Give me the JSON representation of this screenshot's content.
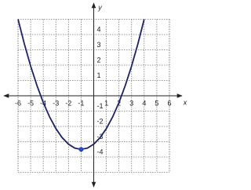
{
  "chart_data": {
    "type": "line",
    "x_label": "x",
    "y_label": "y",
    "x": [
      -6,
      -5.5,
      -5,
      -4.5,
      -4,
      -3.5,
      -3,
      -2.5,
      -2,
      -1.5,
      -1,
      -0.5,
      0,
      0.5,
      1,
      1.5,
      2,
      2.5,
      3,
      3.5,
      4
    ],
    "series": [
      {
        "color": "#1c2266",
        "values": [
          5.0,
          3.39,
          1.94,
          0.67,
          -0.44,
          -1.38,
          -2.14,
          -2.74,
          -3.16,
          -3.42,
          -3.5,
          -3.42,
          -3.16,
          -2.74,
          -2.14,
          -1.38,
          -0.44,
          0.67,
          1.94,
          3.39,
          5.0
        ]
      }
    ],
    "markers": {
      "x": [
        -1
      ],
      "y": [
        -3.5
      ],
      "color": "#2a49c8"
    },
    "xlim": [
      -6,
      6
    ],
    "ylim": [
      -5,
      5
    ],
    "xticks": [
      -6,
      -5,
      -4,
      -3,
      -2,
      -1,
      1,
      2,
      3,
      4,
      5,
      6
    ],
    "yticks": [
      -4,
      -3,
      -2,
      -1,
      1,
      2,
      3,
      4
    ],
    "grid": true
  }
}
